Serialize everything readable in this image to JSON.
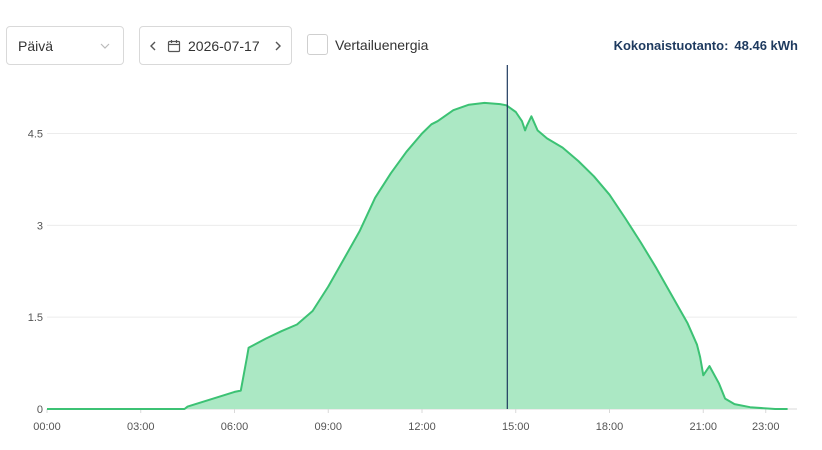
{
  "toolbar": {
    "period_value": "Päivä",
    "date_value": "2026-07-17",
    "compare_label": "Vertailuenergia",
    "total_label": "Kokonaistuotanto:",
    "total_value": "48.46 kWh"
  },
  "icons": {
    "period_chevron": "chevron-down-icon",
    "prev": "chevron-left-icon",
    "calendar": "calendar-icon",
    "next": "chevron-right-icon"
  },
  "colors": {
    "line": "#3cc274",
    "fill": "#abe8c4",
    "cursor": "#1e3a5f",
    "grid": "#ececec"
  },
  "chart_data": {
    "type": "area",
    "title": "",
    "xlabel": "",
    "ylabel": "",
    "x_unit": "hours",
    "ylim": [
      0,
      5.7
    ],
    "yticks": [
      0,
      1.5,
      3,
      4.5
    ],
    "ytick_labels": [
      "0",
      "1.5",
      "3",
      "4.5"
    ],
    "xticks": [
      0,
      3,
      6,
      9,
      12,
      15,
      18,
      21,
      23
    ],
    "xtick_labels": [
      "00:00",
      "03:00",
      "06:00",
      "09:00",
      "12:00",
      "15:00",
      "18:00",
      "21:00",
      "23:00"
    ],
    "grid": "horizontal",
    "cursor_x": 14.73,
    "series": [
      {
        "x": [
          0,
          4.4,
          4.5,
          5.5,
          6.0,
          6.2,
          6.4,
          6.45,
          7.0,
          7.5,
          8.0,
          8.5,
          9.0,
          9.5,
          10.0,
          10.5,
          11.0,
          11.5,
          12.0,
          12.3,
          12.5,
          13.0,
          13.5,
          14.0,
          14.5,
          14.7,
          15.0,
          15.2,
          15.3,
          15.35,
          15.5,
          15.7,
          16.0,
          16.5,
          17.0,
          17.5,
          18.0,
          18.5,
          19.0,
          19.5,
          20.0,
          20.5,
          20.8,
          20.9,
          20.95,
          21.0,
          21.2,
          21.5,
          21.7,
          22.0,
          22.5,
          23.0,
          23.3,
          23.7
        ],
        "y": [
          0,
          0,
          0.04,
          0.2,
          0.28,
          0.3,
          0.85,
          1.0,
          1.15,
          1.27,
          1.38,
          1.6,
          2.0,
          2.45,
          2.9,
          3.45,
          3.85,
          4.2,
          4.5,
          4.65,
          4.7,
          4.88,
          4.97,
          5.0,
          4.98,
          4.96,
          4.85,
          4.7,
          4.55,
          4.62,
          4.78,
          4.55,
          4.42,
          4.27,
          4.05,
          3.8,
          3.5,
          3.12,
          2.72,
          2.3,
          1.85,
          1.4,
          1.05,
          0.85,
          0.7,
          0.55,
          0.7,
          0.42,
          0.17,
          0.08,
          0.03,
          0.01,
          0,
          0
        ]
      }
    ]
  }
}
